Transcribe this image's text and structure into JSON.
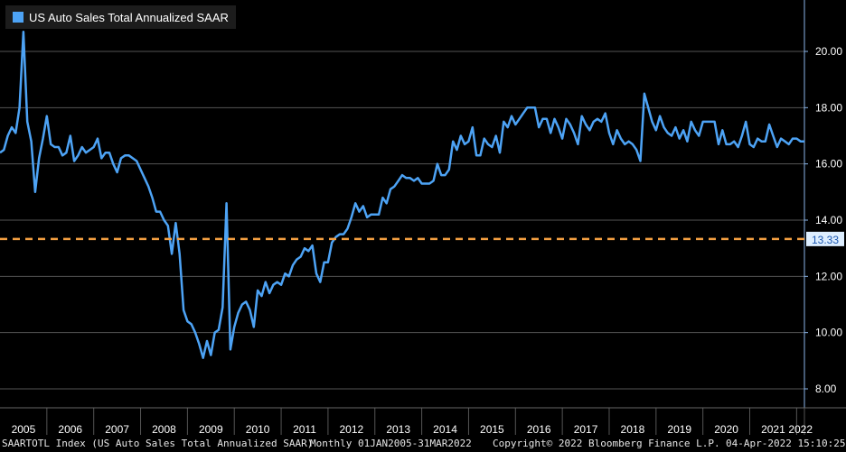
{
  "chart_data": {
    "type": "line",
    "title": "",
    "xlabel": "",
    "ylabel": "",
    "x_range": [
      "2005-01",
      "2022-03"
    ],
    "ylim": [
      7.5,
      21.5
    ],
    "y_ticks": [
      "8.00",
      "10.00",
      "12.00",
      "14.00",
      "16.00",
      "18.00",
      "20.00"
    ],
    "x_tick_labels": [
      "2005",
      "2006",
      "2007",
      "2008",
      "2009",
      "2010",
      "2011",
      "2012",
      "2013",
      "2014",
      "2015",
      "2016",
      "2017",
      "2018",
      "2019",
      "2020",
      "2021",
      "2022"
    ],
    "grid": "horizontal",
    "legend_position": "top-left",
    "series": [
      {
        "name": "US Auto Sales Total Annualized SAAR",
        "color": "#4da3f5",
        "points": [
          [
            "2005-01",
            16.4
          ],
          [
            "2005-02",
            16.5
          ],
          [
            "2005-03",
            17.0
          ],
          [
            "2005-04",
            17.3
          ],
          [
            "2005-05",
            17.1
          ],
          [
            "2005-06",
            18.0
          ],
          [
            "2005-07",
            20.7
          ],
          [
            "2005-08",
            17.5
          ],
          [
            "2005-09",
            16.8
          ],
          [
            "2005-10",
            15.0
          ],
          [
            "2005-11",
            16.2
          ],
          [
            "2005-12",
            16.9
          ],
          [
            "2006-01",
            17.7
          ],
          [
            "2006-02",
            16.7
          ],
          [
            "2006-03",
            16.6
          ],
          [
            "2006-04",
            16.6
          ],
          [
            "2006-05",
            16.3
          ],
          [
            "2006-06",
            16.4
          ],
          [
            "2006-07",
            17.0
          ],
          [
            "2006-08",
            16.1
          ],
          [
            "2006-09",
            16.3
          ],
          [
            "2006-10",
            16.6
          ],
          [
            "2006-11",
            16.4
          ],
          [
            "2006-12",
            16.5
          ],
          [
            "2007-01",
            16.6
          ],
          [
            "2007-02",
            16.9
          ],
          [
            "2007-03",
            16.2
          ],
          [
            "2007-04",
            16.4
          ],
          [
            "2007-05",
            16.4
          ],
          [
            "2007-06",
            16.0
          ],
          [
            "2007-07",
            15.7
          ],
          [
            "2007-08",
            16.2
          ],
          [
            "2007-09",
            16.3
          ],
          [
            "2007-10",
            16.3
          ],
          [
            "2007-11",
            16.2
          ],
          [
            "2007-12",
            16.1
          ],
          [
            "2008-01",
            15.8
          ],
          [
            "2008-02",
            15.5
          ],
          [
            "2008-03",
            15.2
          ],
          [
            "2008-04",
            14.8
          ],
          [
            "2008-05",
            14.3
          ],
          [
            "2008-06",
            14.3
          ],
          [
            "2008-07",
            14.0
          ],
          [
            "2008-08",
            13.8
          ],
          [
            "2008-09",
            12.8
          ],
          [
            "2008-10",
            13.9
          ],
          [
            "2008-11",
            12.8
          ],
          [
            "2008-12",
            10.8
          ],
          [
            "2009-01",
            10.4
          ],
          [
            "2009-02",
            10.3
          ],
          [
            "2009-03",
            10.0
          ],
          [
            "2009-04",
            9.6
          ],
          [
            "2009-05",
            9.1
          ],
          [
            "2009-06",
            9.7
          ],
          [
            "2009-07",
            9.2
          ],
          [
            "2009-08",
            10.0
          ],
          [
            "2009-09",
            10.1
          ],
          [
            "2009-10",
            10.9
          ],
          [
            "2009-11",
            14.6
          ],
          [
            "2009-12",
            9.4
          ],
          [
            "2010-01",
            10.2
          ],
          [
            "2010-02",
            10.7
          ],
          [
            "2010-03",
            11.0
          ],
          [
            "2010-04",
            11.1
          ],
          [
            "2010-05",
            10.8
          ],
          [
            "2010-06",
            10.2
          ],
          [
            "2010-07",
            11.5
          ],
          [
            "2010-08",
            11.3
          ],
          [
            "2010-09",
            11.8
          ],
          [
            "2010-10",
            11.4
          ],
          [
            "2010-11",
            11.7
          ],
          [
            "2010-12",
            11.8
          ],
          [
            "2011-01",
            11.7
          ],
          [
            "2011-02",
            12.1
          ],
          [
            "2011-03",
            12.0
          ],
          [
            "2011-04",
            12.4
          ],
          [
            "2011-05",
            12.6
          ],
          [
            "2011-06",
            12.7
          ],
          [
            "2011-07",
            13.0
          ],
          [
            "2011-08",
            12.9
          ],
          [
            "2011-09",
            13.1
          ],
          [
            "2011-10",
            12.1
          ],
          [
            "2011-11",
            11.8
          ],
          [
            "2011-12",
            12.5
          ],
          [
            "2012-01",
            12.5
          ],
          [
            "2012-02",
            13.2
          ],
          [
            "2012-03",
            13.4
          ],
          [
            "2012-04",
            13.5
          ],
          [
            "2012-05",
            13.5
          ],
          [
            "2012-06",
            13.7
          ],
          [
            "2012-07",
            14.1
          ],
          [
            "2012-08",
            14.6
          ],
          [
            "2012-09",
            14.3
          ],
          [
            "2012-10",
            14.5
          ],
          [
            "2012-11",
            14.1
          ],
          [
            "2012-12",
            14.2
          ],
          [
            "2013-01",
            14.2
          ],
          [
            "2013-02",
            14.2
          ],
          [
            "2013-03",
            14.8
          ],
          [
            "2013-04",
            14.6
          ],
          [
            "2013-05",
            15.1
          ],
          [
            "2013-06",
            15.2
          ],
          [
            "2013-07",
            15.4
          ],
          [
            "2013-08",
            15.6
          ],
          [
            "2013-09",
            15.5
          ],
          [
            "2013-10",
            15.5
          ],
          [
            "2013-11",
            15.4
          ],
          [
            "2013-12",
            15.5
          ],
          [
            "2014-01",
            15.3
          ],
          [
            "2014-02",
            15.3
          ],
          [
            "2014-03",
            15.3
          ],
          [
            "2014-04",
            15.4
          ],
          [
            "2014-05",
            16.0
          ],
          [
            "2014-06",
            15.6
          ],
          [
            "2014-07",
            15.6
          ],
          [
            "2014-08",
            15.8
          ],
          [
            "2014-09",
            16.8
          ],
          [
            "2014-10",
            16.5
          ],
          [
            "2014-11",
            17.0
          ],
          [
            "2014-12",
            16.7
          ],
          [
            "2015-01",
            16.8
          ],
          [
            "2015-02",
            17.3
          ],
          [
            "2015-03",
            16.3
          ],
          [
            "2015-04",
            16.3
          ],
          [
            "2015-05",
            16.9
          ],
          [
            "2015-06",
            16.7
          ],
          [
            "2015-07",
            16.6
          ],
          [
            "2015-08",
            17.0
          ],
          [
            "2015-09",
            16.4
          ],
          [
            "2015-10",
            17.5
          ],
          [
            "2015-11",
            17.3
          ],
          [
            "2015-12",
            17.7
          ],
          [
            "2016-01",
            17.4
          ],
          [
            "2016-02",
            17.6
          ],
          [
            "2016-03",
            17.8
          ],
          [
            "2016-04",
            18.0
          ],
          [
            "2016-05",
            18.0
          ],
          [
            "2016-06",
            18.0
          ],
          [
            "2016-07",
            17.3
          ],
          [
            "2016-08",
            17.6
          ],
          [
            "2016-09",
            17.6
          ],
          [
            "2016-10",
            17.1
          ],
          [
            "2016-11",
            17.6
          ],
          [
            "2016-12",
            17.3
          ],
          [
            "2017-01",
            16.9
          ],
          [
            "2017-02",
            17.6
          ],
          [
            "2017-03",
            17.4
          ],
          [
            "2017-04",
            17.1
          ],
          [
            "2017-05",
            16.7
          ],
          [
            "2017-06",
            17.7
          ],
          [
            "2017-07",
            17.4
          ],
          [
            "2017-08",
            17.2
          ],
          [
            "2017-09",
            17.5
          ],
          [
            "2017-10",
            17.6
          ],
          [
            "2017-11",
            17.5
          ],
          [
            "2017-12",
            17.8
          ],
          [
            "2018-01",
            17.1
          ],
          [
            "2018-02",
            16.7
          ],
          [
            "2018-03",
            17.2
          ],
          [
            "2018-04",
            16.9
          ],
          [
            "2018-05",
            16.7
          ],
          [
            "2018-06",
            16.8
          ],
          [
            "2018-07",
            16.7
          ],
          [
            "2018-08",
            16.5
          ],
          [
            "2018-09",
            16.1
          ],
          [
            "2018-10",
            18.5
          ],
          [
            "2018-11",
            18.0
          ],
          [
            "2018-12",
            17.5
          ],
          [
            "2019-01",
            17.2
          ],
          [
            "2019-02",
            17.7
          ],
          [
            "2019-03",
            17.3
          ],
          [
            "2019-04",
            17.1
          ],
          [
            "2019-05",
            17.0
          ],
          [
            "2019-06",
            17.3
          ],
          [
            "2019-07",
            16.9
          ],
          [
            "2019-08",
            17.2
          ],
          [
            "2019-09",
            16.8
          ],
          [
            "2019-10",
            17.5
          ],
          [
            "2019-11",
            17.2
          ],
          [
            "2019-12",
            17.0
          ],
          [
            "2020-01",
            17.5
          ],
          [
            "2020-02",
            17.5
          ],
          [
            "2020-03",
            17.5
          ],
          [
            "2020-04",
            17.5
          ],
          [
            "2020-05",
            16.7
          ],
          [
            "2020-06",
            17.2
          ],
          [
            "2020-07",
            16.7
          ],
          [
            "2020-08",
            16.7
          ],
          [
            "2020-09",
            16.8
          ],
          [
            "2020-10",
            16.6
          ],
          [
            "2020-11",
            17.0
          ],
          [
            "2020-12",
            17.5
          ],
          [
            "2021-01",
            16.7
          ],
          [
            "2021-02",
            16.6
          ],
          [
            "2021-03",
            16.9
          ],
          [
            "2021-04",
            16.8
          ],
          [
            "2021-05",
            16.8
          ],
          [
            "2021-06",
            17.4
          ],
          [
            "2021-07",
            17.0
          ],
          [
            "2021-08",
            16.6
          ],
          [
            "2021-09",
            16.9
          ],
          [
            "2021-10",
            16.8
          ],
          [
            "2021-11",
            16.7
          ],
          [
            "2021-12",
            16.9
          ],
          [
            "2022-01",
            16.9
          ],
          [
            "2022-02",
            16.8
          ],
          [
            "2022-03",
            16.8
          ]
        ]
      }
    ],
    "reference_line": {
      "value": 13.33,
      "label": "13.33",
      "style": "dashed",
      "color": "#f5a042"
    }
  },
  "legend": {
    "label": "US Auto Sales Total Annualized SAAR",
    "color": "#4da3f5"
  },
  "footer": {
    "ticker": "SAARTOTL Index (US Auto Sales Total Annualized SAAR)",
    "range": "Monthly 01JAN2005-31MAR2022",
    "copyright": "Copyright© 2022 Bloomberg Finance L.P.",
    "timestamp": "04-Apr-2022 15:10:25"
  },
  "colors": {
    "background": "#000000",
    "grid": "#555555",
    "axis": "#8ab4e8",
    "line": "#4da3f5",
    "reference": "#f5a042"
  }
}
